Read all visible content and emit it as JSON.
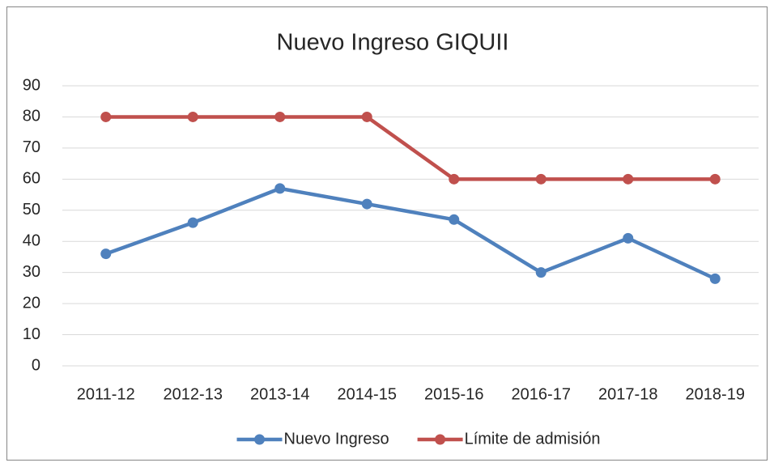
{
  "chart_data": {
    "type": "line",
    "title": "Nuevo Ingreso GIQUII",
    "categories": [
      "2011-12",
      "2012-13",
      "2013-14",
      "2014-15",
      "2015-16",
      "2016-17",
      "2017-18",
      "2018-19"
    ],
    "series": [
      {
        "name": "Nuevo Ingreso",
        "color": "#4f81bd",
        "values": [
          36,
          46,
          57,
          52,
          47,
          30,
          41,
          28
        ]
      },
      {
        "name": "Límite de admisión",
        "color": "#c0504d",
        "values": [
          80,
          80,
          80,
          80,
          60,
          60,
          60,
          60
        ]
      }
    ],
    "ylim": [
      0,
      90
    ],
    "yticks": [
      0,
      10,
      20,
      30,
      40,
      50,
      60,
      70,
      80,
      90
    ],
    "grid": true,
    "legend": "bottom"
  }
}
